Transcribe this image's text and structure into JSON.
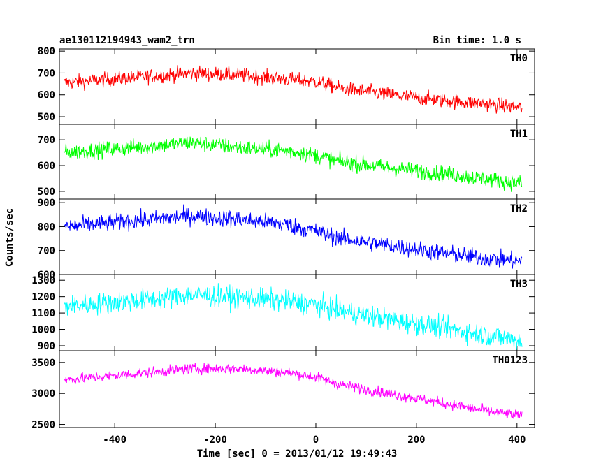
{
  "header": {
    "title_left": "ae130112194943_wam2_trn",
    "title_right": "Bin time: 1.0 s"
  },
  "axes": {
    "xlabel": "Time [sec] 0 = 2013/01/12 19:49:43",
    "ylabel": "Counts/sec"
  },
  "chart_data": {
    "type": "line",
    "title": "ae130112194943_wam2_trn",
    "subtitle": "Bin time: 1.0 s",
    "xlabel": "Time [sec] 0 = 2013/01/12 19:49:43",
    "ylabel": "Counts/sec",
    "xlim": [
      -510,
      435
    ],
    "x_ticks": [
      -400,
      -200,
      0,
      200,
      400
    ],
    "x_start": -500,
    "x_end": 410,
    "grid": false,
    "legend": "none",
    "panels": [
      {
        "name": "TH0",
        "color": "#ff0000",
        "ylim": [
          465,
          810
        ],
        "y_ticks": [
          500,
          600,
          700,
          800
        ],
        "trend": [
          [
            -500,
            655
          ],
          [
            -300,
            690
          ],
          [
            -250,
            700
          ],
          [
            -150,
            690
          ],
          [
            -50,
            670
          ],
          [
            0,
            660
          ],
          [
            50,
            630
          ],
          [
            150,
            600
          ],
          [
            250,
            575
          ],
          [
            350,
            555
          ],
          [
            410,
            540
          ]
        ],
        "noise": 28
      },
      {
        "name": "TH1",
        "color": "#00ff00",
        "ylim": [
          470,
          760
        ],
        "y_ticks": [
          500,
          600,
          700
        ],
        "trend": [
          [
            -500,
            650
          ],
          [
            -300,
            680
          ],
          [
            -250,
            690
          ],
          [
            -150,
            670
          ],
          [
            -50,
            655
          ],
          [
            0,
            640
          ],
          [
            50,
            615
          ],
          [
            150,
            590
          ],
          [
            250,
            570
          ],
          [
            350,
            545
          ],
          [
            410,
            530
          ]
        ],
        "noise": 26
      },
      {
        "name": "TH2",
        "color": "#0000ff",
        "ylim": [
          600,
          915
        ],
        "y_ticks": [
          600,
          700,
          800,
          900
        ],
        "trend": [
          [
            -500,
            800
          ],
          [
            -300,
            835
          ],
          [
            -250,
            845
          ],
          [
            -150,
            830
          ],
          [
            -60,
            810
          ],
          [
            0,
            780
          ],
          [
            50,
            750
          ],
          [
            150,
            720
          ],
          [
            250,
            690
          ],
          [
            350,
            665
          ],
          [
            410,
            655
          ]
        ],
        "noise": 30
      },
      {
        "name": "TH3",
        "color": "#00ffff",
        "ylim": [
          870,
          1335
        ],
        "y_ticks": [
          900,
          1000,
          1100,
          1200,
          1300
        ],
        "trend": [
          [
            -500,
            1140
          ],
          [
            -300,
            1190
          ],
          [
            -250,
            1210
          ],
          [
            -150,
            1195
          ],
          [
            -50,
            1170
          ],
          [
            0,
            1150
          ],
          [
            50,
            1110
          ],
          [
            150,
            1060
          ],
          [
            250,
            1010
          ],
          [
            350,
            960
          ],
          [
            410,
            930
          ]
        ],
        "noise": 55
      },
      {
        "name": "TH0123",
        "color": "#ff00ff",
        "ylim": [
          2450,
          3690
        ],
        "y_ticks": [
          2500,
          3000,
          3500
        ],
        "trend": [
          [
            -500,
            3220
          ],
          [
            -300,
            3360
          ],
          [
            -250,
            3400
          ],
          [
            -150,
            3400
          ],
          [
            -50,
            3330
          ],
          [
            0,
            3260
          ],
          [
            50,
            3140
          ],
          [
            150,
            2990
          ],
          [
            250,
            2850
          ],
          [
            350,
            2700
          ],
          [
            410,
            2640
          ]
        ],
        "noise": 70
      }
    ]
  }
}
